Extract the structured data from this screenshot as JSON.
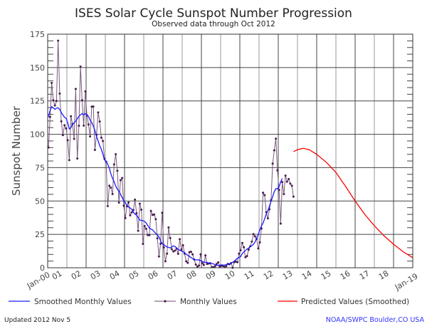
{
  "chart_data": {
    "type": "line",
    "title": "ISES Solar Cycle Sunspot Number Progression",
    "subtitle": "Observed data through Oct 2012",
    "ylabel": "Sunspot Number",
    "xlabel": "",
    "ylim": [
      0,
      175
    ],
    "xlim": [
      "Jan-00",
      "Jan-19"
    ],
    "yticks": [
      "0",
      "25",
      "50",
      "75",
      "100",
      "125",
      "150",
      "175"
    ],
    "xticks": [
      "Jan-00",
      "01",
      "02",
      "03",
      "04",
      "05",
      "06",
      "07",
      "08",
      "09",
      "10",
      "11",
      "12",
      "13",
      "14",
      "15",
      "16",
      "17",
      "18",
      "Jan-19"
    ],
    "grid": true,
    "legend_position": "bottom",
    "series": [
      {
        "name": "Monthly Values",
        "color": "#4b1a4f",
        "start": "2000-01",
        "values": [
          90.1,
          112.9,
          138.5,
          125.5,
          121.6,
          124.9,
          170.1,
          130.5,
          109.7,
          99.4,
          106.8,
          104.4,
          95.6,
          80.6,
          113.5,
          107.7,
          96.6,
          134.0,
          81.8,
          106.4,
          150.7,
          125.5,
          106.5,
          132.2,
          114.1,
          107.4,
          98.4,
          120.7,
          120.8,
          88.3,
          99.6,
          116.4,
          109.6,
          97.5,
          95.0,
          81.6,
          79.5,
          46.2,
          61.5,
          60.0,
          55.2,
          77.4,
          85.0,
          72.7,
          48.8,
          65.6,
          67.2,
          46.5,
          37.2,
          46.0,
          48.9,
          39.3,
          41.5,
          43.2,
          51.0,
          40.9,
          27.7,
          48.0,
          43.5,
          17.9,
          31.3,
          29.2,
          24.5,
          24.4,
          42.6,
          39.6,
          39.9,
          36.4,
          22.1,
          8.5,
          18.0,
          41.2,
          15.3,
          4.9,
          10.6,
          30.2,
          22.3,
          13.9,
          12.2,
          12.9,
          14.4,
          10.5,
          21.4,
          13.6,
          16.9,
          10.6,
          4.8,
          3.7,
          11.7,
          12.0,
          10.0,
          6.2,
          2.4,
          0.9,
          1.7,
          10.1,
          3.4,
          2.1,
          9.3,
          2.9,
          3.2,
          3.4,
          0.5,
          0.5,
          1.1,
          2.9,
          4.1,
          0.8,
          1.5,
          1.4,
          0.7,
          1.2,
          2.9,
          2.6,
          3.5,
          0.0,
          4.2,
          4.6,
          4.2,
          10.6,
          13.1,
          18.6,
          15.4,
          7.9,
          8.8,
          13.5,
          16.1,
          19.6,
          25.2,
          23.5,
          21.6,
          14.5,
          19.0,
          29.4,
          56.2,
          54.4,
          41.6,
          37.0,
          43.8,
          50.6,
          78.0,
          88.0,
          96.7,
          73.0,
          58.3,
          33.1,
          64.2,
          55.2,
          69.0,
          64.5,
          66.5,
          63.0,
          61.4,
          53.3
        ]
      },
      {
        "name": "Smoothed Monthly Values",
        "color": "#1a1aff",
        "start": "2000-01",
        "values": [
          112.9,
          117.9,
          120.7,
          119.8,
          118.7,
          119.6,
          119.8,
          118.6,
          116.3,
          114.5,
          112.7,
          112.0,
          108.7,
          104.0,
          104.8,
          107.5,
          108.6,
          109.8,
          111.7,
          113.5,
          114.6,
          115.5,
          114.5,
          115.5,
          114.6,
          113.3,
          110.6,
          108.8,
          106.2,
          102.7,
          98.6,
          95.0,
          91.4,
          88.7,
          85.0,
          80.8,
          79.7,
          77.6,
          74.6,
          70.2,
          67.0,
          64.4,
          61.2,
          58.8,
          57.6,
          55.0,
          52.6,
          50.2,
          48.6,
          47.0,
          45.5,
          44.8,
          43.8,
          41.6,
          40.2,
          39.4,
          37.7,
          35.8,
          35.4,
          35.3,
          34.7,
          33.5,
          31.7,
          29.8,
          29.0,
          28.4,
          27.0,
          25.7,
          24.5,
          23.2,
          20.2,
          18.0,
          17.4,
          16.4,
          15.5,
          15.2,
          14.9,
          15.6,
          16.4,
          16.0,
          14.8,
          13.7,
          13.1,
          12.6,
          12.0,
          11.4,
          10.1,
          9.3,
          8.5,
          7.7,
          6.8,
          6.1,
          5.8,
          5.9,
          5.9,
          5.3,
          4.7,
          4.2,
          4.1,
          4.0,
          3.5,
          3.4,
          3.2,
          2.9,
          2.3,
          1.8,
          1.7,
          1.9,
          2.2,
          2.0,
          2.0,
          2.4,
          2.5,
          2.9,
          3.3,
          4.1,
          4.9,
          6.1,
          7.1,
          7.7,
          8.3,
          10.6,
          11.9,
          12.9,
          14.0,
          14.8,
          15.8,
          16.5,
          17.6,
          19.3,
          22.2,
          25.0,
          28.4,
          31.4,
          33.4,
          36.7,
          40.1,
          42.7,
          46.1,
          49.9,
          53.3,
          57.0,
          59.2,
          59.2,
          60.8,
          64.2,
          66.9
        ]
      },
      {
        "name": "Predicted Values (Smoothed)",
        "color": "#ff0000",
        "x": [
          2012.8,
          2013.0,
          2013.3,
          2013.6,
          2014.0,
          2014.5,
          2015.0,
          2015.5,
          2016.0,
          2016.5,
          2017.0,
          2017.5,
          2018.0,
          2018.5,
          2019.0
        ],
        "values": [
          87,
          88.5,
          89.5,
          88.5,
          85,
          79,
          71.5,
          61,
          50,
          40,
          31.5,
          24,
          17.6,
          12,
          7.5
        ]
      }
    ]
  },
  "legend": {
    "smoothed": "Smoothed Monthly Values",
    "monthly": "Monthly Values",
    "predicted": "Predicted Values (Smoothed)"
  },
  "footer": {
    "updated": "Updated 2012 Nov  5",
    "credit": "NOAA/SWPC Boulder,CO USA",
    "credit_color": "#3333ff"
  }
}
